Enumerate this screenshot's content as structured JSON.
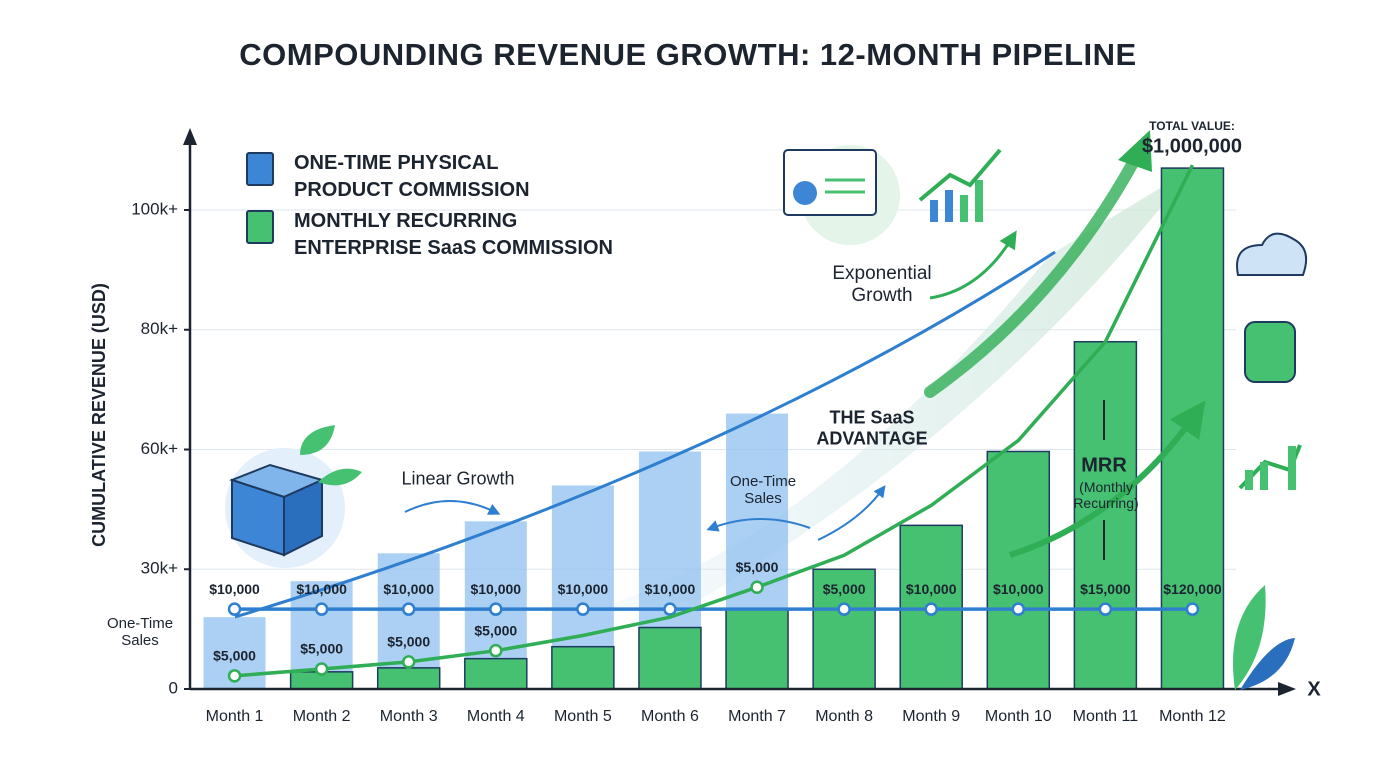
{
  "chart_data": {
    "type": "bar",
    "title": "COMPOUNDING REVENUE GROWTH: 12-MONTH PIPELINE",
    "y_label": "CUMULATIVE REVENUE (USD)",
    "x_label": "X",
    "categories": [
      "Month 1",
      "Month 2",
      "Month 3",
      "Month 4",
      "Month 5",
      "Month 6",
      "Month 7",
      "Month 8",
      "Month 9",
      "Month 10",
      "Month 11",
      "Month 12"
    ],
    "yticks": [
      0,
      {
        "value": 30000,
        "label": "30k+"
      },
      {
        "value": 60000,
        "label": "60k+"
      },
      {
        "value": 80000,
        "label": "80k+"
      },
      {
        "value": 100000,
        "label": "100k+"
      }
    ],
    "grid": true,
    "series": [
      {
        "name": "ONE-TIME PHYSICAL PRODUCT COMMISSION",
        "type": "bar",
        "color": "#8fc0ef",
        "values": [
          18000,
          27000,
          34000,
          42000,
          51000,
          59500,
          66000,
          null,
          null,
          null,
          null,
          null
        ]
      },
      {
        "name": "MONTHLY RECURRING ENTERPRISE SaaS COMMISSION",
        "type": "bar",
        "color": "#46c172",
        "values": [
          null,
          4300,
          5300,
          7600,
          10600,
          15400,
          20000,
          30000,
          41000,
          59500,
          78000,
          107000
        ]
      },
      {
        "name": "One-Time Sales",
        "type": "line",
        "color": "#2f7fd0",
        "values": [
          20000,
          20000,
          20000,
          20000,
          20000,
          20000,
          20000,
          20000,
          20000,
          20000,
          20000,
          20000
        ],
        "point_labels": [
          "$10,000",
          "$10,000",
          "$10,000",
          "$10,000",
          "$10,000",
          "$10,000",
          null,
          "$5,000",
          "$10,000",
          "$10,000",
          "$15,000",
          "$120,000"
        ]
      },
      {
        "name": "MRR",
        "type": "line",
        "color": "#2fae55",
        "values": [
          3300,
          5000,
          6800,
          9600,
          13400,
          18000,
          25500,
          33500,
          46000,
          61500,
          78000,
          107500
        ],
        "point_labels": [
          "$5,000",
          "$5,000",
          "$5,000",
          "$5,000",
          null,
          null,
          "$5,000",
          null,
          null,
          null,
          null,
          null
        ]
      }
    ],
    "annotations": [
      "Linear Growth",
      "One-Time Sales",
      "One-Time Sales",
      "THE SaaS ADVANTAGE",
      "Exponential Growth",
      "MRR",
      "(Monthly Recurring)",
      "TOTAL VALUE:",
      "$1,000,000"
    ]
  }
}
